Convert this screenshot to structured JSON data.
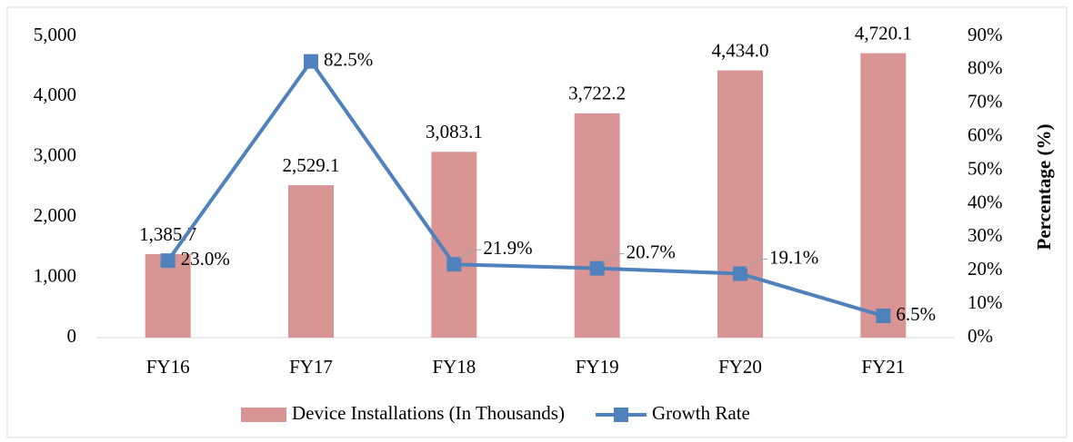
{
  "chart_data": {
    "type": "bar",
    "categories": [
      "FY16",
      "FY17",
      "FY18",
      "FY19",
      "FY20",
      "FY21"
    ],
    "series": [
      {
        "name": "Device Installations (In Thousands)",
        "type": "bar",
        "color": "#d99594",
        "values": [
          1385.7,
          2529.1,
          3083.1,
          3722.2,
          4434.0,
          4720.1
        ],
        "value_labels": [
          "1,385.7",
          "2,529.1",
          "3,083.1",
          "3,722.2",
          "4,434.0",
          "4,720.1"
        ]
      },
      {
        "name": "Growth Rate",
        "type": "line",
        "axis": "y2",
        "color": "#4f81bd",
        "values": [
          23.0,
          82.5,
          21.9,
          20.7,
          19.1,
          6.5
        ],
        "value_labels": [
          "23.0%",
          "82.5%",
          "21.9%",
          "20.7%",
          "19.1%",
          "6.5%"
        ]
      }
    ],
    "ylim": [
      0,
      5000
    ],
    "yticks": [
      0,
      {
        "value": 1000,
        "label": "1,000"
      },
      {
        "value": 2000,
        "label": "2,000"
      },
      {
        "value": 3000,
        "label": "3,000"
      },
      {
        "value": 4000,
        "label": "4,000"
      },
      {
        "value": 5000,
        "label": "5,000"
      }
    ],
    "y2lim": [
      0,
      90
    ],
    "y2ticks": [
      {
        "value": 0,
        "label": "0%"
      },
      {
        "value": 10,
        "label": "10%"
      },
      {
        "value": 20,
        "label": "20%"
      },
      {
        "value": 30,
        "label": "30%"
      },
      {
        "value": 40,
        "label": "40%"
      },
      {
        "value": 50,
        "label": "50%"
      },
      {
        "value": 60,
        "label": "60%"
      },
      {
        "value": 70,
        "label": "70%"
      },
      {
        "value": 80,
        "label": "80%"
      },
      {
        "value": 90,
        "label": "90%"
      }
    ],
    "y2label": "Percentage (%)",
    "legend": "bottom"
  }
}
